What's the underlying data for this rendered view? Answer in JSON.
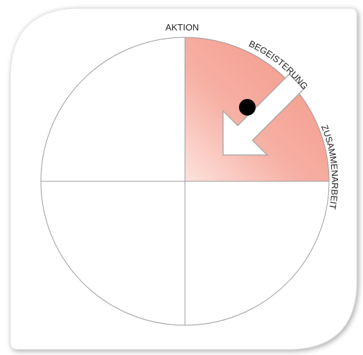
{
  "labels": {
    "top": "AKTION",
    "arc_top_right": "BEGEISTERUNG",
    "arc_right": "ZUSAMMENARBEIT"
  }
}
